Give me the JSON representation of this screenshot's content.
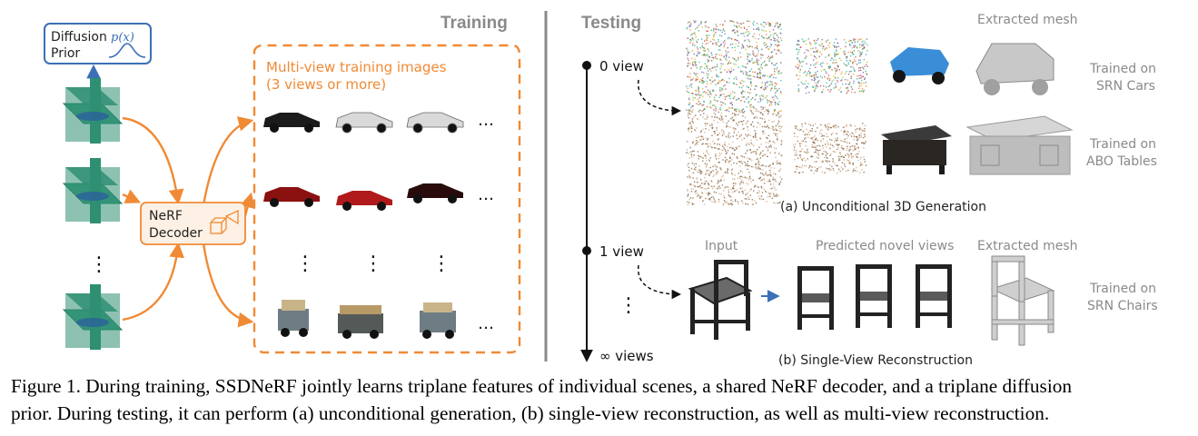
{
  "training": {
    "heading": "Training",
    "diffusion_prior": {
      "line1": "Diffusion",
      "line2": "Prior",
      "formula": "p(x)"
    },
    "decoder": {
      "line1": "NeRF",
      "line2": "Decoder"
    },
    "images_label": {
      "line1": "Multi-view training images",
      "line2": "(3 views or more)"
    },
    "ellipsis": "…",
    "vdots": "⋮",
    "colors": {
      "orange": "#F08A35",
      "blue": "#3B6FB6",
      "plane": "#2F8F72"
    }
  },
  "testing": {
    "heading": "Testing",
    "timeline": [
      "0 view",
      "1 view",
      "∞ views"
    ],
    "unconditional": {
      "extracted_mesh": "Extracted mesh",
      "rows": [
        {
          "label_line1": "Trained on",
          "label_line2": "SRN Cars"
        },
        {
          "label_line1": "Trained on",
          "label_line2": "ABO Tables"
        }
      ],
      "caption": "(a) Unconditional 3D Generation"
    },
    "single_view": {
      "input": "Input",
      "predicted": "Predicted novel views",
      "extracted_mesh": "Extracted mesh",
      "label_line1": "Trained on",
      "label_line2": "SRN Chairs",
      "caption": "(b) Single-View Reconstruction"
    }
  },
  "caption": {
    "line1": "Figure 1. During training, SSDNeRF jointly learns triplane features of individual scenes, a shared NeRF decoder, and a triplane diffusion",
    "line2": "prior. During testing, it can perform (a) unconditional generation, (b) single-view reconstruction, as well as multi-view reconstruction."
  }
}
